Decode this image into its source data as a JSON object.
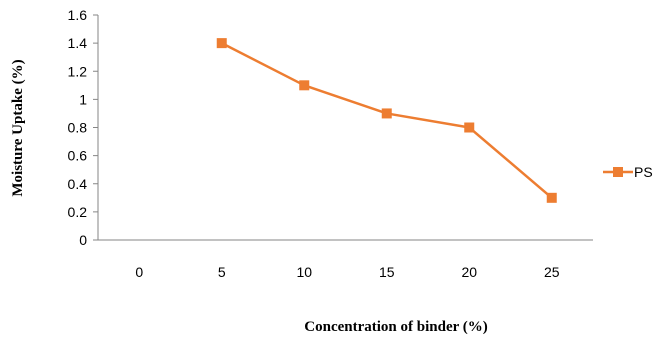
{
  "chart_data": {
    "type": "line",
    "categories": [
      "0",
      "5",
      "10",
      "15",
      "20",
      "25"
    ],
    "series": [
      {
        "name": "PS",
        "values": [
          null,
          1.4,
          1.1,
          0.9,
          0.8,
          0.3
        ],
        "color": "#ED7D31",
        "marker": "square"
      }
    ],
    "xlabel": "Concentration of binder (%)",
    "ylabel": "Moisture Uptake (%)",
    "ylim": [
      0,
      1.6
    ],
    "yticks": [
      "0",
      "0.2",
      "0.4",
      "0.6",
      "0.8",
      "1",
      "1.2",
      "1.4",
      "1.6"
    ],
    "grid": false,
    "legend": "right"
  }
}
